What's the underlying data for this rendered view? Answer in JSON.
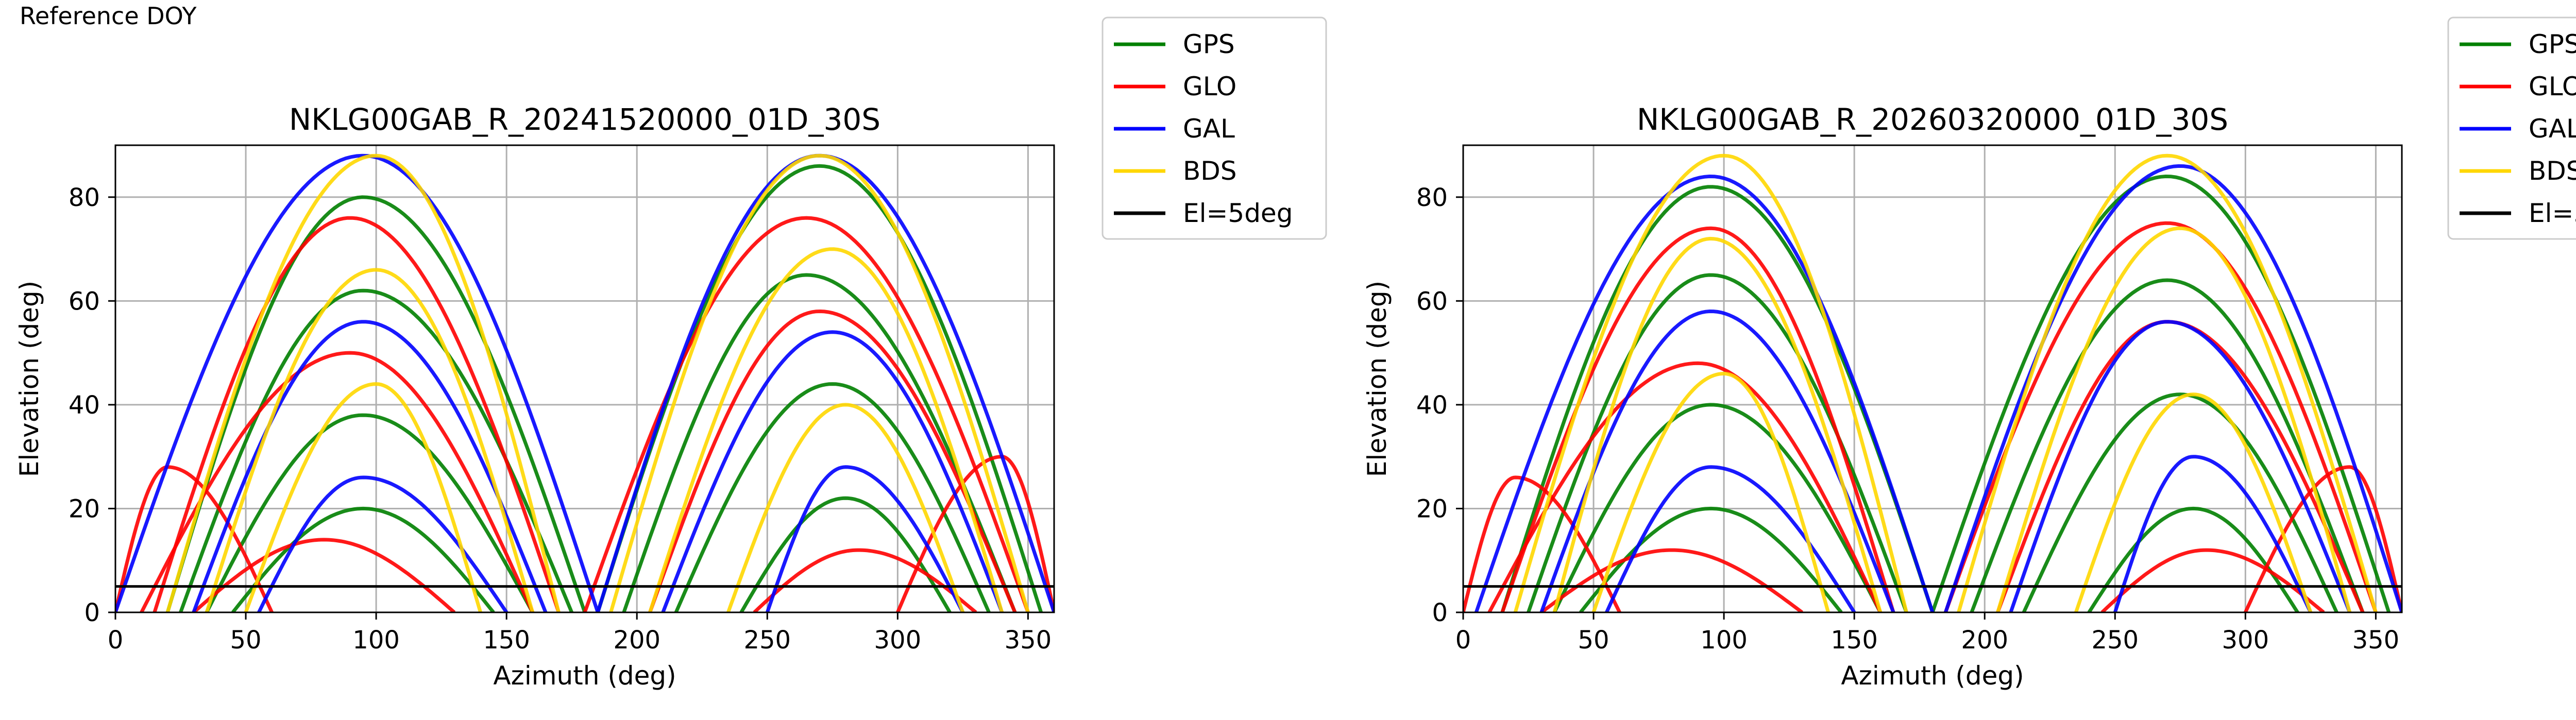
{
  "page_label": "Reference DOY",
  "colors": {
    "GPS": "#008000",
    "GLO": "#ff0000",
    "GAL": "#0000ff",
    "BDS": "#ffd700",
    "El=5deg": "#000000",
    "grid": "#b0b0b0"
  },
  "legend": [
    {
      "name": "GPS",
      "color": "#008000"
    },
    {
      "name": "GLO",
      "color": "#ff0000"
    },
    {
      "name": "GAL",
      "color": "#0000ff"
    },
    {
      "name": "BDS",
      "color": "#ffd700"
    },
    {
      "name": "El=5deg",
      "color": "#000000"
    }
  ],
  "chart_data": [
    {
      "type": "scatter",
      "title": "NKLG00GAB_R_20241520000_01D_30S",
      "xlabel": "Azimuth (deg)",
      "ylabel": "Elevation (deg)",
      "xlim": [
        0,
        360
      ],
      "ylim": [
        0,
        90
      ],
      "xticks": [
        0,
        50,
        100,
        150,
        200,
        250,
        300,
        350
      ],
      "yticks": [
        0,
        20,
        40,
        60,
        80
      ],
      "grid": true,
      "legend_position": "outside-right",
      "reference_line": {
        "name": "El=5deg",
        "elevation": 5
      },
      "series": [
        {
          "name": "GPS",
          "color": "#008000",
          "arcs": [
            {
              "az_range": [
                20,
                180
              ],
              "peak_el": 80,
              "peak_az": 95
            },
            {
              "az_range": [
                25,
                175
              ],
              "peak_el": 62,
              "peak_az": 95
            },
            {
              "az_range": [
                35,
                160
              ],
              "peak_el": 38,
              "peak_az": 95
            },
            {
              "az_range": [
                45,
                145
              ],
              "peak_el": 20,
              "peak_az": 95
            },
            {
              "az_range": [
                185,
                355
              ],
              "peak_el": 86,
              "peak_az": 270
            },
            {
              "az_range": [
                195,
                345
              ],
              "peak_el": 65,
              "peak_az": 265
            },
            {
              "az_range": [
                215,
                335
              ],
              "peak_el": 44,
              "peak_az": 275
            },
            {
              "az_range": [
                240,
                320
              ],
              "peak_el": 22,
              "peak_az": 280
            }
          ]
        },
        {
          "name": "GLO",
          "color": "#ff0000",
          "arcs": [
            {
              "az_range": [
                15,
                170
              ],
              "peak_el": 76,
              "peak_az": 90
            },
            {
              "az_range": [
                10,
                160
              ],
              "peak_el": 50,
              "peak_az": 90
            },
            {
              "az_range": [
                0,
                60
              ],
              "peak_el": 28,
              "peak_az": 20
            },
            {
              "az_range": [
                30,
                130
              ],
              "peak_el": 14,
              "peak_az": 80
            },
            {
              "az_range": [
                180,
                350
              ],
              "peak_el": 76,
              "peak_az": 265
            },
            {
              "az_range": [
                205,
                345
              ],
              "peak_el": 58,
              "peak_az": 270
            },
            {
              "az_range": [
                300,
                360
              ],
              "peak_el": 30,
              "peak_az": 340
            },
            {
              "az_range": [
                245,
                330
              ],
              "peak_el": 12,
              "peak_az": 285
            }
          ]
        },
        {
          "name": "GAL",
          "color": "#0000ff",
          "arcs": [
            {
              "az_range": [
                0,
                185
              ],
              "peak_el": 88,
              "peak_az": 95
            },
            {
              "az_range": [
                30,
                165
              ],
              "peak_el": 56,
              "peak_az": 95
            },
            {
              "az_range": [
                55,
                150
              ],
              "peak_el": 26,
              "peak_az": 95
            },
            {
              "az_range": [
                185,
                360
              ],
              "peak_el": 88,
              "peak_az": 270
            },
            {
              "az_range": [
                210,
                340
              ],
              "peak_el": 54,
              "peak_az": 275
            },
            {
              "az_range": [
                250,
                325
              ],
              "peak_el": 28,
              "peak_az": 280
            }
          ]
        },
        {
          "name": "BDS",
          "color": "#ffd700",
          "arcs": [
            {
              "az_range": [
                20,
                170
              ],
              "peak_el": 88,
              "peak_az": 100
            },
            {
              "az_range": [
                35,
                160
              ],
              "peak_el": 66,
              "peak_az": 100
            },
            {
              "az_range": [
                50,
                140
              ],
              "peak_el": 44,
              "peak_az": 100
            },
            {
              "az_range": [
                190,
                350
              ],
              "peak_el": 88,
              "peak_az": 270
            },
            {
              "az_range": [
                205,
                340
              ],
              "peak_el": 70,
              "peak_az": 275
            },
            {
              "az_range": [
                235,
                325
              ],
              "peak_el": 40,
              "peak_az": 280
            }
          ]
        }
      ]
    },
    {
      "type": "scatter",
      "title": "NKLG00GAB_R_20260320000_01D_30S",
      "xlabel": "Azimuth (deg)",
      "ylabel": "Elevation (deg)",
      "xlim": [
        0,
        360
      ],
      "ylim": [
        0,
        90
      ],
      "xticks": [
        0,
        50,
        100,
        150,
        200,
        250,
        300,
        350
      ],
      "yticks": [
        0,
        20,
        40,
        60,
        80
      ],
      "grid": true,
      "legend_position": "outside-right",
      "reference_line": {
        "name": "El=5deg",
        "elevation": 5
      },
      "series": [
        {
          "name": "GPS",
          "color": "#008000",
          "arcs": [
            {
              "az_range": [
                15,
                180
              ],
              "peak_el": 82,
              "peak_az": 95
            },
            {
              "az_range": [
                25,
                170
              ],
              "peak_el": 65,
              "peak_az": 95
            },
            {
              "az_range": [
                35,
                160
              ],
              "peak_el": 40,
              "peak_az": 95
            },
            {
              "az_range": [
                45,
                145
              ],
              "peak_el": 20,
              "peak_az": 95
            },
            {
              "az_range": [
                180,
                355
              ],
              "peak_el": 84,
              "peak_az": 270
            },
            {
              "az_range": [
                195,
                345
              ],
              "peak_el": 64,
              "peak_az": 270
            },
            {
              "az_range": [
                215,
                335
              ],
              "peak_el": 42,
              "peak_az": 275
            },
            {
              "az_range": [
                240,
                320
              ],
              "peak_el": 20,
              "peak_az": 280
            }
          ]
        },
        {
          "name": "GLO",
          "color": "#ff0000",
          "arcs": [
            {
              "az_range": [
                15,
                165
              ],
              "peak_el": 74,
              "peak_az": 95
            },
            {
              "az_range": [
                10,
                160
              ],
              "peak_el": 48,
              "peak_az": 90
            },
            {
              "az_range": [
                0,
                60
              ],
              "peak_el": 26,
              "peak_az": 20
            },
            {
              "az_range": [
                30,
                130
              ],
              "peak_el": 12,
              "peak_az": 80
            },
            {
              "az_range": [
                185,
                350
              ],
              "peak_el": 75,
              "peak_az": 270
            },
            {
              "az_range": [
                205,
                345
              ],
              "peak_el": 56,
              "peak_az": 270
            },
            {
              "az_range": [
                300,
                360
              ],
              "peak_el": 28,
              "peak_az": 340
            },
            {
              "az_range": [
                245,
                330
              ],
              "peak_el": 12,
              "peak_az": 285
            }
          ]
        },
        {
          "name": "GAL",
          "color": "#0000ff",
          "arcs": [
            {
              "az_range": [
                5,
                180
              ],
              "peak_el": 84,
              "peak_az": 95
            },
            {
              "az_range": [
                30,
                165
              ],
              "peak_el": 58,
              "peak_az": 95
            },
            {
              "az_range": [
                55,
                150
              ],
              "peak_el": 28,
              "peak_az": 95
            },
            {
              "az_range": [
                185,
                360
              ],
              "peak_el": 86,
              "peak_az": 275
            },
            {
              "az_range": [
                210,
                340
              ],
              "peak_el": 56,
              "peak_az": 270
            },
            {
              "az_range": [
                250,
                325
              ],
              "peak_el": 30,
              "peak_az": 280
            }
          ]
        },
        {
          "name": "BDS",
          "color": "#ffd700",
          "arcs": [
            {
              "az_range": [
                20,
                170
              ],
              "peak_el": 88,
              "peak_az": 100
            },
            {
              "az_range": [
                35,
                160
              ],
              "peak_el": 72,
              "peak_az": 95
            },
            {
              "az_range": [
                50,
                140
              ],
              "peak_el": 46,
              "peak_az": 100
            },
            {
              "az_range": [
                190,
                350
              ],
              "peak_el": 88,
              "peak_az": 270
            },
            {
              "az_range": [
                205,
                340
              ],
              "peak_el": 74,
              "peak_az": 275
            },
            {
              "az_range": [
                235,
                325
              ],
              "peak_el": 42,
              "peak_az": 280
            }
          ]
        }
      ]
    }
  ]
}
